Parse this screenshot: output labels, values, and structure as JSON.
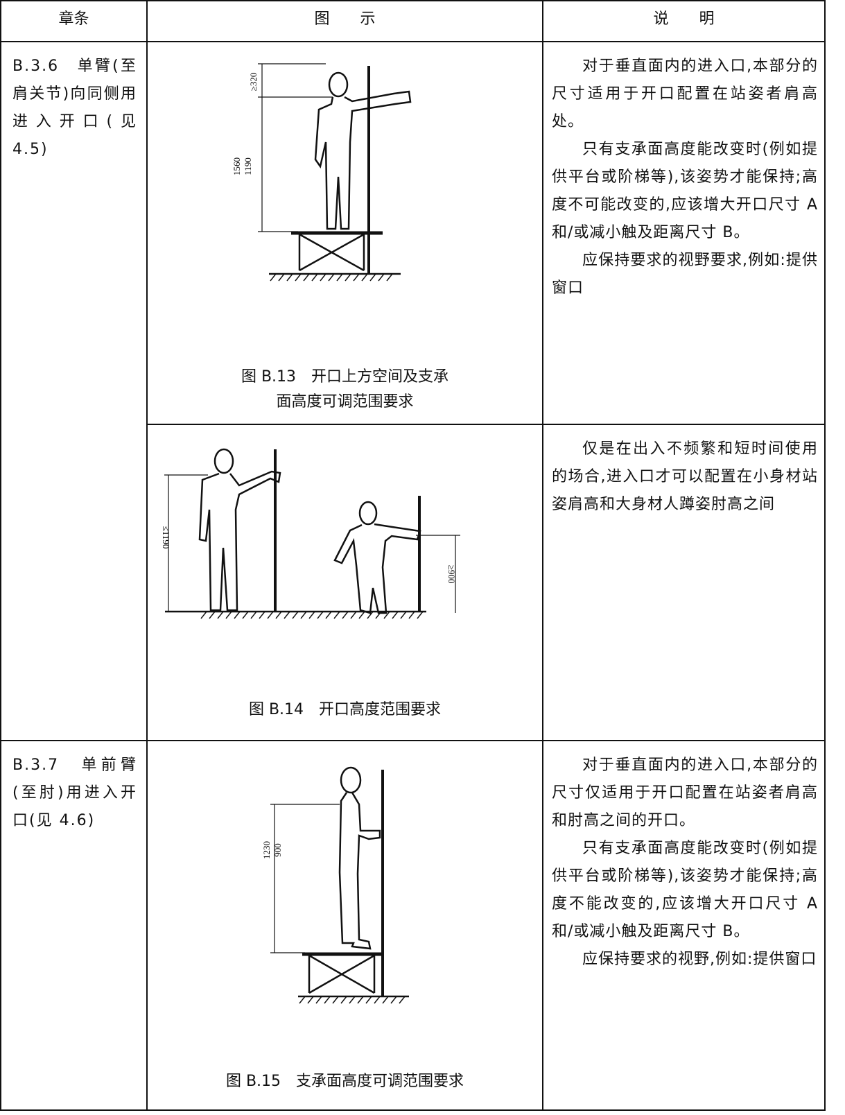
{
  "header": {
    "clause": "章条",
    "figure": "图　　示",
    "description": "说　　明"
  },
  "sections": [
    {
      "clause": "B.3.6　单臂(至肩关节)向同侧用进入开口(见 4.5)",
      "entries": [
        {
          "figure": {
            "caption": [
              "图 B.13　开口上方空间及支承",
              "面高度可调范围要求"
            ],
            "dims": [
              "≥320",
              "1560",
              "1190"
            ]
          },
          "description": [
            "对于垂直面内的进入口,本部分的尺寸适用于开口配置在站姿者肩高处。",
            "只有支承面高度能改变时(例如提供平台或阶梯等),该姿势才能保持;高度不可能改变的,应该增大开口尺寸 A 和/或减小触及距离尺寸 B。",
            "应保持要求的视野要求,例如:提供窗口"
          ]
        },
        {
          "figure": {
            "caption": [
              "图 B.14　开口高度范围要求"
            ],
            "dims": [
              "≤1190",
              "≥900"
            ]
          },
          "description": [
            "仅是在出入不频繁和短时间使用的场合,进入口才可以配置在小身材站姿肩高和大身材人蹲姿肘高之间"
          ]
        }
      ]
    },
    {
      "clause": "B.3.7　单前臂(至肘)用进入开口(见 4.6)",
      "entries": [
        {
          "figure": {
            "caption": [
              "图 B.15　支承面高度可调范围要求"
            ],
            "dims": [
              "1230",
              "900"
            ]
          },
          "description": [
            "对于垂直面内的进入口,本部分的尺寸仅适用于开口配置在站姿者肩高和肘高之间的开口。",
            "只有支承面高度能改变时(例如提供平台或阶梯等),该姿势才能保持;高度不能改变的,应该增大开口尺寸 A 和/或减小触及距离尺寸 B。",
            "应保持要求的视野,例如:提供窗口"
          ]
        }
      ]
    }
  ]
}
